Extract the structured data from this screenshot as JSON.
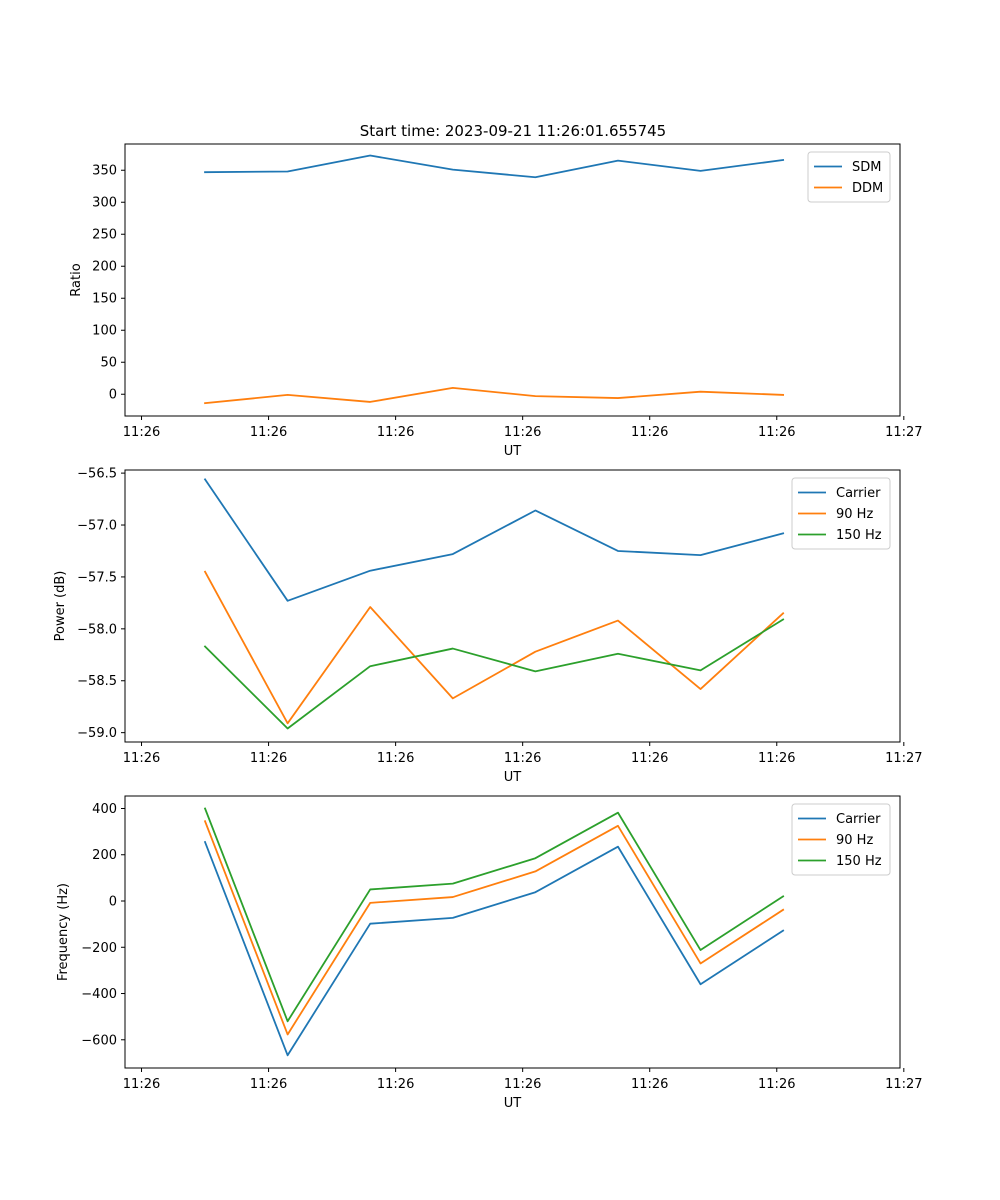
{
  "title": "Start time: 2023-09-21 11:26:01.655745",
  "colors": {
    "blue": "#1f77b4",
    "orange": "#ff7f0e",
    "green": "#2ca02c"
  },
  "chart_data": [
    {
      "type": "line",
      "title": "Start time: 2023-09-21 11:26:01.655745",
      "xlabel": "UT",
      "ylabel": "Ratio",
      "x": [
        0.5,
        1.15,
        1.8,
        2.45,
        3.1,
        3.75,
        4.4,
        5.05
      ],
      "xlim": [
        -0.13,
        5.97
      ],
      "x_ticks": [
        0,
        1,
        2,
        3,
        4,
        5,
        6
      ],
      "x_tick_labels": [
        "11:26",
        "11:26",
        "11:26",
        "11:26",
        "11:26",
        "11:26",
        "11:27"
      ],
      "ylim": [
        -34,
        391
      ],
      "y_ticks": [
        0,
        50,
        100,
        150,
        200,
        250,
        300,
        350
      ],
      "y_tick_labels": [
        "0",
        "50",
        "100",
        "150",
        "200",
        "250",
        "300",
        "350"
      ],
      "legend_position": "top-right",
      "series": [
        {
          "name": "SDM",
          "color": "#1f77b4",
          "values": [
            347,
            348,
            373,
            351,
            339,
            365,
            349,
            366
          ]
        },
        {
          "name": "DDM",
          "color": "#ff7f0e",
          "values": [
            -14,
            -1,
            -12,
            10,
            -3,
            -6,
            4,
            -1
          ]
        }
      ]
    },
    {
      "type": "line",
      "title": "",
      "xlabel": "UT",
      "ylabel": "Power (dB)",
      "x": [
        0.5,
        1.15,
        1.8,
        2.45,
        3.1,
        3.75,
        4.4,
        5.05
      ],
      "xlim": [
        -0.13,
        5.97
      ],
      "x_ticks": [
        0,
        1,
        2,
        3,
        4,
        5,
        6
      ],
      "x_tick_labels": [
        "11:26",
        "11:26",
        "11:26",
        "11:26",
        "11:26",
        "11:26",
        "11:27"
      ],
      "ylim": [
        -59.09,
        -56.47
      ],
      "y_ticks": [
        -59.0,
        -58.5,
        -58.0,
        -57.5,
        -57.0,
        -56.5
      ],
      "y_tick_labels": [
        "−59.0",
        "−58.5",
        "−58.0",
        "−57.5",
        "−57.0",
        "−56.5"
      ],
      "legend_position": "top-right",
      "series": [
        {
          "name": "Carrier",
          "color": "#1f77b4",
          "values": [
            -56.56,
            -57.73,
            -57.44,
            -57.28,
            -56.86,
            -57.25,
            -57.29,
            -57.08
          ]
        },
        {
          "name": "90 Hz",
          "color": "#ff7f0e",
          "values": [
            -57.45,
            -58.91,
            -57.79,
            -58.67,
            -58.22,
            -57.92,
            -58.58,
            -57.85
          ]
        },
        {
          "name": "150 Hz",
          "color": "#2ca02c",
          "values": [
            -58.17,
            -58.96,
            -58.36,
            -58.19,
            -58.41,
            -58.24,
            -58.4,
            -57.91
          ]
        }
      ]
    },
    {
      "type": "line",
      "title": "",
      "xlabel": "UT",
      "ylabel": "Frequency (Hz)",
      "x": [
        0.5,
        1.15,
        1.8,
        2.45,
        3.1,
        3.75,
        4.4,
        5.05
      ],
      "xlim": [
        -0.13,
        5.97
      ],
      "x_ticks": [
        0,
        1,
        2,
        3,
        4,
        5,
        6
      ],
      "x_tick_labels": [
        "11:26",
        "11:26",
        "11:26",
        "11:26",
        "11:26",
        "11:26",
        "11:27"
      ],
      "ylim": [
        -722,
        454
      ],
      "y_ticks": [
        -600,
        -400,
        -200,
        0,
        200,
        400
      ],
      "y_tick_labels": [
        "−600",
        "−400",
        "−200",
        "0",
        "200",
        "400"
      ],
      "legend_position": "top-right",
      "series": [
        {
          "name": "Carrier",
          "color": "#1f77b4",
          "values": [
            255,
            -667,
            -98,
            -73,
            38,
            235,
            -360,
            -128
          ]
        },
        {
          "name": "90 Hz",
          "color": "#ff7f0e",
          "values": [
            345,
            -577,
            -8,
            17,
            128,
            325,
            -270,
            -38
          ]
        },
        {
          "name": "150 Hz",
          "color": "#2ca02c",
          "values": [
            400,
            -520,
            50,
            75,
            185,
            382,
            -212,
            20
          ]
        }
      ]
    }
  ]
}
